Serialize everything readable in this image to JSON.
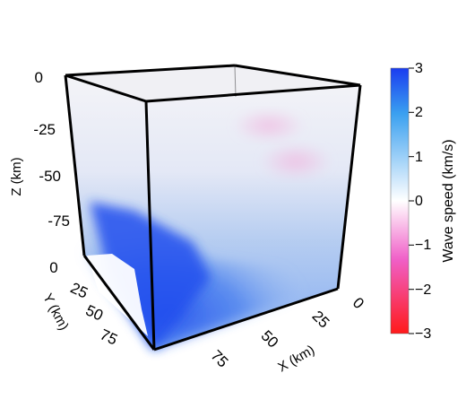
{
  "chart_data": {
    "type": "3d-volume",
    "colorbar": {
      "label": "Wave speed (km/s)",
      "range": [
        -3,
        3
      ],
      "ticks": [
        "3",
        "2",
        "1",
        "0",
        "−1",
        "−2",
        "−3"
      ],
      "colors": {
        "max": "#1a3cf0",
        "mid": "#ffffff",
        "min": "#ff1a1a",
        "upper_mid": "#3aa0f0",
        "lower_mid": "#f060c8"
      }
    },
    "axes": {
      "z": {
        "label": "Z (km)",
        "ticks": [
          "0",
          "-25",
          "-50",
          "-75"
        ]
      },
      "y": {
        "label": "Y (km)",
        "ticks": [
          "0",
          "25",
          "50",
          "75"
        ]
      },
      "x": {
        "label": "X (km)",
        "ticks": [
          "0",
          "25",
          "50",
          "75"
        ]
      }
    }
  }
}
